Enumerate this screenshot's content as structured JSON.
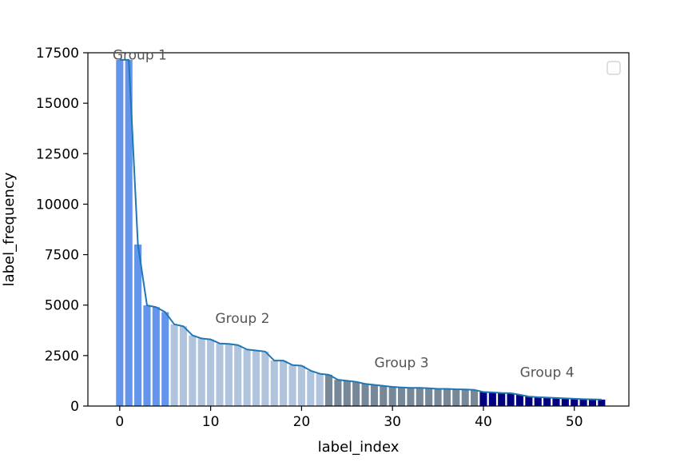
{
  "chart_data": {
    "type": "bar",
    "title": "",
    "xlabel": "label_index",
    "ylabel": "label_frequency",
    "xlim": [
      -3.5,
      56
    ],
    "ylim": [
      0,
      17500
    ],
    "xticks": [
      "0",
      "10",
      "20",
      "30",
      "40",
      "50"
    ],
    "yticks": [
      "0",
      "2500",
      "5000",
      "7500",
      "10000",
      "12500",
      "15000",
      "17500"
    ],
    "grid": false,
    "legend": {
      "placement": "top-right",
      "entries": []
    },
    "x": [
      0,
      1,
      2,
      3,
      4,
      5,
      6,
      7,
      8,
      9,
      10,
      11,
      12,
      13,
      14,
      15,
      16,
      17,
      18,
      19,
      20,
      21,
      22,
      23,
      24,
      25,
      26,
      27,
      28,
      29,
      30,
      31,
      32,
      33,
      34,
      35,
      36,
      37,
      38,
      39,
      40,
      41,
      42,
      43,
      44,
      45,
      46,
      47,
      48,
      49,
      50,
      51,
      52,
      53
    ],
    "values": [
      17150,
      17150,
      8000,
      4990,
      4900,
      4650,
      4050,
      3950,
      3500,
      3350,
      3300,
      3100,
      3080,
      3020,
      2800,
      2750,
      2700,
      2250,
      2250,
      2030,
      2000,
      1750,
      1600,
      1550,
      1300,
      1250,
      1200,
      1100,
      1050,
      1000,
      950,
      920,
      900,
      900,
      880,
      850,
      850,
      830,
      820,
      800,
      700,
      680,
      650,
      640,
      560,
      470,
      440,
      420,
      400,
      380,
      360,
      340,
      330,
      320
    ],
    "line": {
      "values": [
        17150,
        17150,
        8000,
        4990,
        4900,
        4650,
        4050,
        3950,
        3500,
        3350,
        3300,
        3100,
        3080,
        3020,
        2800,
        2750,
        2700,
        2250,
        2250,
        2030,
        2000,
        1750,
        1600,
        1550,
        1300,
        1250,
        1200,
        1100,
        1050,
        1000,
        950,
        920,
        900,
        900,
        880,
        850,
        850,
        830,
        820,
        800,
        700,
        680,
        650,
        640,
        560,
        470,
        440,
        420,
        400,
        380,
        360,
        340,
        330,
        320
      ],
      "color": "#1f77b4"
    },
    "groups": [
      {
        "label": "Group 1",
        "range": [
          0,
          5
        ],
        "color": "#6495ed",
        "label_x": 2.2,
        "label_y": 17400
      },
      {
        "label": "Group 2",
        "range": [
          6,
          22
        ],
        "color": "#b0c4de",
        "label_x": 13.5,
        "label_y": 4350
      },
      {
        "label": "Group 3",
        "range": [
          23,
          39
        ],
        "color": "#778899",
        "label_x": 31,
        "label_y": 2150
      },
      {
        "label": "Group 4",
        "range": [
          40,
          53
        ],
        "color": "#000080",
        "label_x": 47,
        "label_y": 1680
      }
    ]
  }
}
